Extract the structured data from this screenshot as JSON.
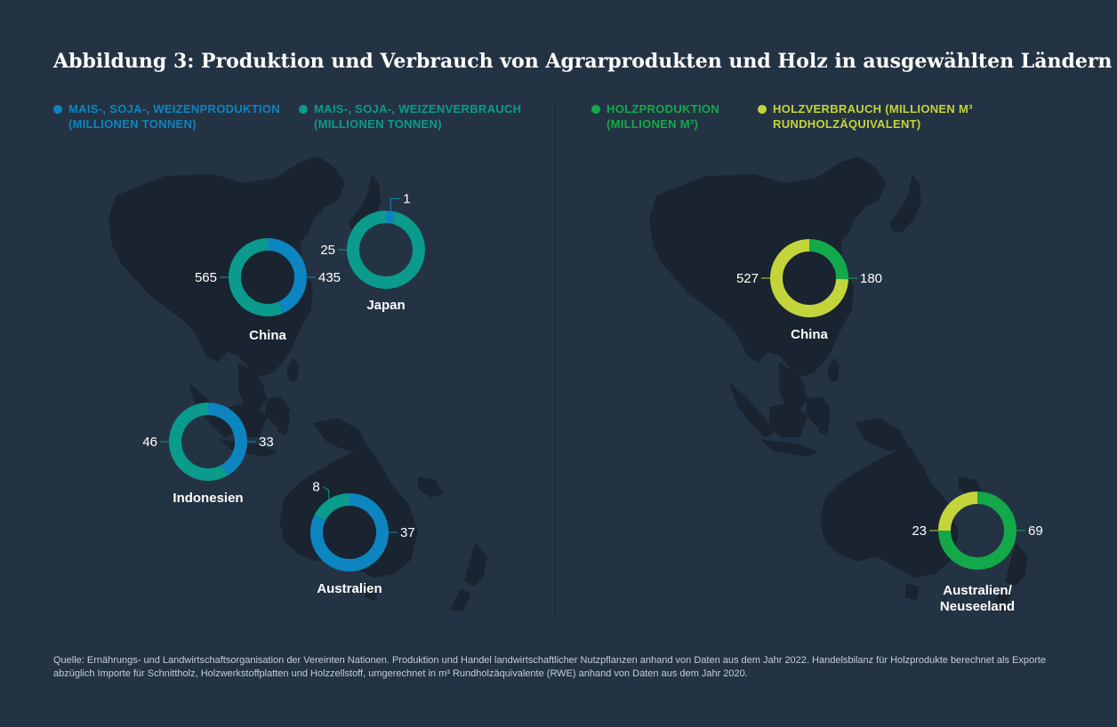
{
  "title": "Abbildung 3: Produktion und Verbrauch von Agrarprodukten und Holz in ausgewählten Ländern",
  "legend": {
    "agr_prod": {
      "line1": "MAIS-, SOJA-, WEIZENPRODUKTION",
      "line2": "(MILLIONEN TONNEN)",
      "color": "#0c85c0"
    },
    "agr_cons": {
      "line1": "MAIS-, SOJA-, WEIZENVERBRAUCH",
      "line2": "(MILLIONEN TONNEN)",
      "color": "#0a9b8c"
    },
    "wood_prod": {
      "line1": "HOLZPRODUKTION",
      "line2": "(MILLIONEN M³)",
      "color": "#13a94a"
    },
    "wood_cons": {
      "line1": "HOLZVERBRAUCH (MILLIONEN M³",
      "line2": "RUNDHOLZÄQUIVALENT)",
      "color": "#c3d53a"
    }
  },
  "chart_data": [
    {
      "type": "donut",
      "panel": "Agrarprodukte",
      "series": [
        {
          "name": "MAIS-, SOJA-, WEIZENPRODUKTION (MILLIONEN TONNEN)",
          "color": "#0c85c0"
        },
        {
          "name": "MAIS-, SOJA-, WEIZENVERBRAUCH (MILLIONEN TONNEN)",
          "color": "#0a9b8c"
        }
      ],
      "donuts": [
        {
          "country": "China",
          "production": 435,
          "consumption": 565,
          "production_label": "435",
          "consumption_label": "565"
        },
        {
          "country": "Japan",
          "production": 1,
          "consumption": 25,
          "production_label": "1",
          "consumption_label": "25"
        },
        {
          "country": "Indonesien",
          "production": 33,
          "consumption": 46,
          "production_label": "33",
          "consumption_label": "46"
        },
        {
          "country": "Australien",
          "production": 37,
          "consumption": 8,
          "production_label": "37",
          "consumption_label": "8"
        }
      ]
    },
    {
      "type": "donut",
      "panel": "Holz",
      "series": [
        {
          "name": "HOLZPRODUKTION (MILLIONEN M³)",
          "color": "#13a94a"
        },
        {
          "name": "HOLZVERBRAUCH (MILLIONEN M³ RUNDHOLZÄQUIVALENT)",
          "color": "#c3d53a"
        }
      ],
      "donuts": [
        {
          "country": "China",
          "production": 180,
          "consumption": 527,
          "production_label": "180",
          "consumption_label": "527"
        },
        {
          "country": "Australien/ Neuseeland",
          "production": 69,
          "consumption": 23,
          "production_label": "69",
          "consumption_label": "23"
        }
      ]
    }
  ],
  "source": "Quelle: Ernährungs- und Landwirtschaftsorganisation der Vereinten Nationen. Produktion und Handel landwirtschaftlicher Nutzpflanzen anhand von Daten aus dem Jahr 2022. Handelsbilanz für Holzprodukte berechnet als Exporte abzüglich Importe für Schnittholz, Holzwerkstoffplatten und Holzzellstoff, umgerechnet in m³ Rundholzäquivalente (RWE) anhand von Daten aus dem Jahr 2020."
}
